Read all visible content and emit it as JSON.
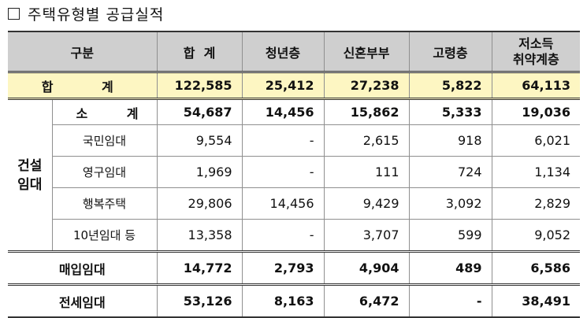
{
  "title": "주택유형별 공급실적",
  "columns": {
    "category": "구분",
    "total": "합  계",
    "youth": "청년층",
    "newlywed": "신혼부부",
    "elderly": "고령층",
    "low_income_line1": "저소득",
    "low_income_line2": "취약계층"
  },
  "rows": {
    "total": {
      "label": "합 계",
      "values": [
        "122,585",
        "25,412",
        "27,238",
        "5,822",
        "64,113"
      ]
    },
    "construction_group": {
      "line1": "건설",
      "line2": "임대"
    },
    "subtotal": {
      "label": "소 계",
      "values": [
        "54,687",
        "14,456",
        "15,862",
        "5,333",
        "19,036"
      ]
    },
    "national": {
      "label": "국민임대",
      "values": [
        "9,554",
        "-",
        "2,615",
        "918",
        "6,021"
      ]
    },
    "permanent": {
      "label": "영구임대",
      "values": [
        "1,969",
        "-",
        "111",
        "724",
        "1,134"
      ]
    },
    "happy": {
      "label": "행복주택",
      "values": [
        "29,806",
        "14,456",
        "9,429",
        "3,092",
        "2,829"
      ]
    },
    "tenyear": {
      "label": "10년임대 등",
      "values": [
        "13,358",
        "-",
        "3,707",
        "599",
        "9,052"
      ]
    },
    "purchase": {
      "label": "매입임대",
      "values": [
        "14,772",
        "2,793",
        "4,904",
        "489",
        "6,586"
      ]
    },
    "jeonse": {
      "label": "전세임대",
      "values": [
        "53,126",
        "8,163",
        "6,472",
        "-",
        "38,491"
      ]
    }
  }
}
